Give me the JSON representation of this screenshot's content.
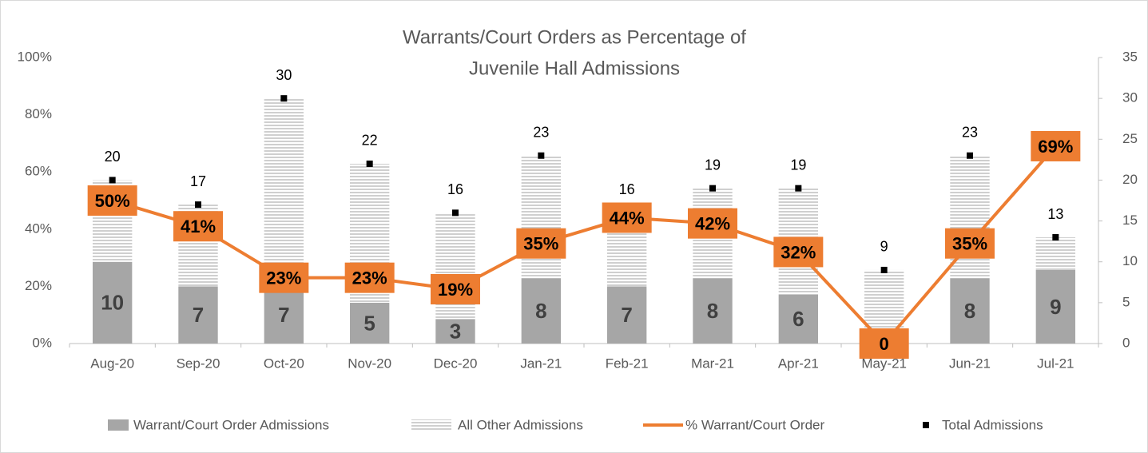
{
  "chart_data": {
    "type": "combo",
    "title": [
      "Warrants/Court Orders as Percentage of",
      "Juvenile Hall Admissions"
    ],
    "categories": [
      "Aug-20",
      "Sep-20",
      "Oct-20",
      "Nov-20",
      "Dec-20",
      "Jan-21",
      "Feb-21",
      "Mar-21",
      "Apr-21",
      "May-21",
      "Jun-21",
      "Jul-21"
    ],
    "stacked": true,
    "series": [
      {
        "name": "Warrant/Court Order Admissions",
        "type": "bar",
        "axis": "y2",
        "color": "#a6a6a6",
        "values": [
          10,
          7,
          7,
          5,
          3,
          8,
          7,
          8,
          6,
          0,
          8,
          9
        ]
      },
      {
        "name": "All Other Admissions",
        "type": "bar",
        "axis": "y2",
        "color": "#bfbfbf",
        "pattern": "horizontal-lines",
        "values": [
          10,
          10,
          23,
          17,
          13,
          15,
          9,
          11,
          13,
          9,
          15,
          4
        ]
      },
      {
        "name": "% Warrant/Court Order",
        "type": "line",
        "axis": "y",
        "color": "#ed7d31",
        "values": [
          50,
          41,
          23,
          23,
          19,
          35,
          44,
          42,
          32,
          0,
          35,
          69
        ],
        "value_labels": [
          "50%",
          "41%",
          "23%",
          "23%",
          "19%",
          "35%",
          "44%",
          "42%",
          "32%",
          "0",
          "35%",
          "69%"
        ]
      },
      {
        "name": "Total Admissions",
        "type": "scatter",
        "axis": "y2",
        "color": "#000000",
        "values": [
          20,
          17,
          30,
          22,
          16,
          23,
          16,
          19,
          19,
          9,
          23,
          13
        ]
      }
    ],
    "ylim": [
      0,
      100
    ],
    "yticks": [
      {
        "value": 0,
        "label": "0%"
      },
      {
        "value": 20,
        "label": "20%"
      },
      {
        "value": 40,
        "label": "40%"
      },
      {
        "value": 60,
        "label": "60%"
      },
      {
        "value": 80,
        "label": "80%"
      },
      {
        "value": 100,
        "label": "100%"
      }
    ],
    "y2lim": [
      0,
      35
    ],
    "y2ticks": [
      0,
      5,
      10,
      15,
      20,
      25,
      30,
      35
    ],
    "grid": false,
    "legend": "bottom"
  }
}
